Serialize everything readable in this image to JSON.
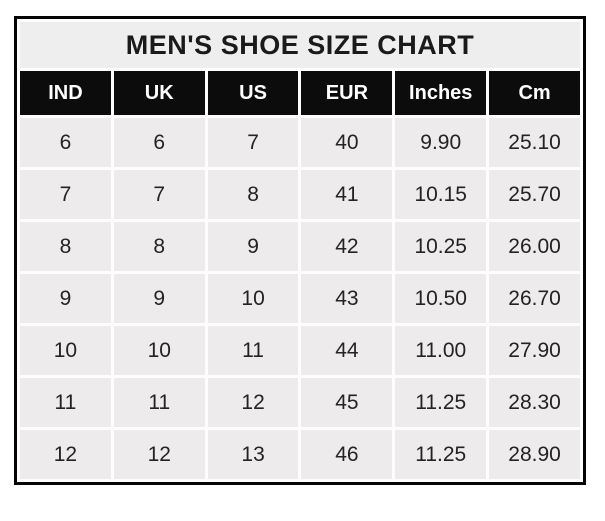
{
  "title": "MEN'S SHOE SIZE CHART",
  "columns": [
    "IND",
    "UK",
    "US",
    "EUR",
    "Inches",
    "Cm"
  ],
  "rows": [
    [
      "6",
      "6",
      "7",
      "40",
      "9.90",
      "25.10"
    ],
    [
      "7",
      "7",
      "8",
      "41",
      "10.15",
      "25.70"
    ],
    [
      "8",
      "8",
      "9",
      "42",
      "10.25",
      "26.00"
    ],
    [
      "9",
      "9",
      "10",
      "43",
      "10.50",
      "26.70"
    ],
    [
      "10",
      "10",
      "11",
      "44",
      "11.00",
      "27.90"
    ],
    [
      "11",
      "11",
      "12",
      "45",
      "11.25",
      "28.30"
    ],
    [
      "12",
      "12",
      "13",
      "46",
      "11.25",
      "28.90"
    ]
  ],
  "colors": {
    "outer_border": "#050505",
    "title_background": "#efeeee",
    "header_background": "#0c0c0c",
    "header_text": "#ffffff",
    "cell_background": "#edebeb",
    "cell_text": "#232323",
    "grid_gap": "#fdfdfd",
    "page_background": "#ffffff"
  },
  "chart_data": {
    "type": "table",
    "title": "MEN'S SHOE SIZE CHART",
    "columns": [
      "IND",
      "UK",
      "US",
      "EUR",
      "Inches",
      "Cm"
    ],
    "rows": [
      [
        6,
        6,
        7,
        40,
        9.9,
        25.1
      ],
      [
        7,
        7,
        8,
        41,
        10.15,
        25.7
      ],
      [
        8,
        8,
        9,
        42,
        10.25,
        26.0
      ],
      [
        9,
        9,
        10,
        43,
        10.5,
        26.7
      ],
      [
        10,
        10,
        11,
        44,
        11.0,
        27.9
      ],
      [
        11,
        11,
        12,
        45,
        11.25,
        28.3
      ],
      [
        12,
        12,
        13,
        46,
        11.25,
        28.9
      ]
    ],
    "layout": {
      "grid": true,
      "header_style": "black-band-white-text",
      "title_position": "top-center"
    }
  }
}
